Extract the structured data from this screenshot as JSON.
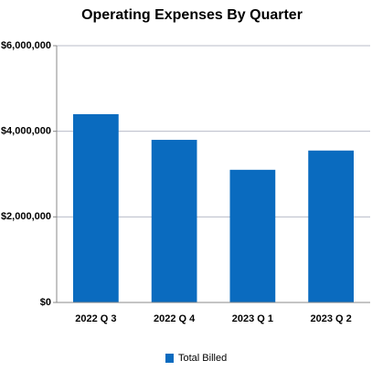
{
  "chart_data": {
    "type": "bar",
    "title": "Operating Expenses By Quarter",
    "categories": [
      "2022 Q 3",
      "2022 Q 4",
      "2023 Q 1",
      "2023 Q 2"
    ],
    "series": [
      {
        "name": "Total Billed",
        "color": "#0a6bbf",
        "values": [
          4400000,
          3800000,
          3100000,
          3550000
        ]
      }
    ],
    "ylim": [
      0,
      6000000
    ],
    "yticks": [
      {
        "value": 0,
        "label": "$0"
      },
      {
        "value": 2000000,
        "label": "$2,000,000"
      },
      {
        "value": 4000000,
        "label": "$4,000,000"
      },
      {
        "value": 6000000,
        "label": "$6,000,000"
      }
    ],
    "grid": true,
    "legend": "bottom"
  }
}
